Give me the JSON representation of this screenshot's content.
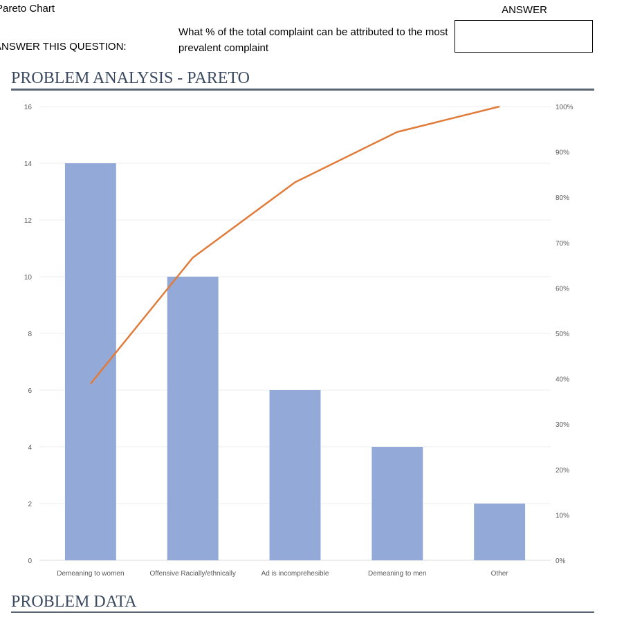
{
  "sheet": {
    "title": "Pareto Chart",
    "answer_prompt": "ANSWER THIS QUESTION:",
    "question": "What % of the total complaint can be attributed to the most prevalent complaint",
    "answer_header": "ANSWER",
    "answer_value": ""
  },
  "sections": {
    "analysis_title": "PROBLEM ANALYSIS - PARETO",
    "data_title": "PROBLEM DATA"
  },
  "colors": {
    "bar": "#93aad8",
    "line": "#e07b39",
    "grid": "#ececec",
    "axis": "#d9d9d9"
  },
  "chart_data": {
    "type": "bar",
    "categories": [
      "Demeaning to women",
      "Offensive Racially/ethnically",
      "Ad is incomprehesible",
      "Demeaning to men",
      "Other"
    ],
    "series": [
      {
        "type": "bar",
        "values": [
          14,
          10,
          6,
          4,
          2
        ]
      },
      {
        "type": "line",
        "axis": "secondary",
        "values": [
          38.9,
          66.7,
          83.3,
          94.4,
          100
        ]
      }
    ],
    "ylim": [
      0,
      16
    ],
    "yticks": [
      0,
      2,
      4,
      6,
      8,
      10,
      12,
      14,
      16
    ],
    "y2lim": [
      0,
      100
    ],
    "y2ticks": [
      "0%",
      "10%",
      "20%",
      "30%",
      "40%",
      "50%",
      "60%",
      "70%",
      "80%",
      "90%",
      "100%"
    ],
    "grid": true
  }
}
